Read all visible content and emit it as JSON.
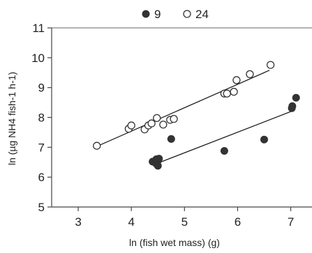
{
  "chart_data": {
    "type": "scatter",
    "xlabel": "ln (fish wet mass) (g)",
    "ylabel": "ln (µg NH4 fish-1 h-1)",
    "xlim": [
      2.5,
      7.4
    ],
    "ylim": [
      5,
      11
    ],
    "xticks": [
      3,
      4,
      5,
      6,
      7
    ],
    "yticks": [
      5,
      6,
      7,
      8,
      9,
      10,
      11
    ],
    "grid": false,
    "legend_position": "top-center",
    "series": [
      {
        "name": "9",
        "marker": "filled-circle",
        "color": "#333333",
        "points": [
          {
            "x": 4.4,
            "y": 6.52
          },
          {
            "x": 4.45,
            "y": 6.48
          },
          {
            "x": 4.47,
            "y": 6.6
          },
          {
            "x": 4.48,
            "y": 6.43
          },
          {
            "x": 4.5,
            "y": 6.55
          },
          {
            "x": 4.5,
            "y": 6.38
          },
          {
            "x": 4.52,
            "y": 6.62
          },
          {
            "x": 4.75,
            "y": 7.28
          },
          {
            "x": 5.75,
            "y": 6.88
          },
          {
            "x": 6.5,
            "y": 7.26
          },
          {
            "x": 7.02,
            "y": 8.31
          },
          {
            "x": 7.03,
            "y": 8.38
          },
          {
            "x": 7.1,
            "y": 8.66
          }
        ],
        "fit": {
          "x": [
            4.5,
            7.05
          ],
          "y": [
            6.47,
            8.23
          ]
        }
      },
      {
        "name": "24",
        "marker": "open-circle",
        "color": "#333333",
        "points": [
          {
            "x": 3.35,
            "y": 7.05
          },
          {
            "x": 3.95,
            "y": 7.62
          },
          {
            "x": 4.0,
            "y": 7.73
          },
          {
            "x": 4.25,
            "y": 7.6
          },
          {
            "x": 4.32,
            "y": 7.73
          },
          {
            "x": 4.38,
            "y": 7.8
          },
          {
            "x": 4.48,
            "y": 7.98
          },
          {
            "x": 4.6,
            "y": 7.76
          },
          {
            "x": 4.73,
            "y": 7.92
          },
          {
            "x": 4.8,
            "y": 7.95
          },
          {
            "x": 5.75,
            "y": 8.8
          },
          {
            "x": 5.8,
            "y": 8.8
          },
          {
            "x": 5.93,
            "y": 8.86
          },
          {
            "x": 5.98,
            "y": 9.25
          },
          {
            "x": 6.23,
            "y": 9.45
          },
          {
            "x": 6.62,
            "y": 9.76
          }
        ],
        "fit": {
          "x": [
            3.35,
            6.6
          ],
          "y": [
            7.03,
            9.58
          ]
        }
      }
    ]
  }
}
